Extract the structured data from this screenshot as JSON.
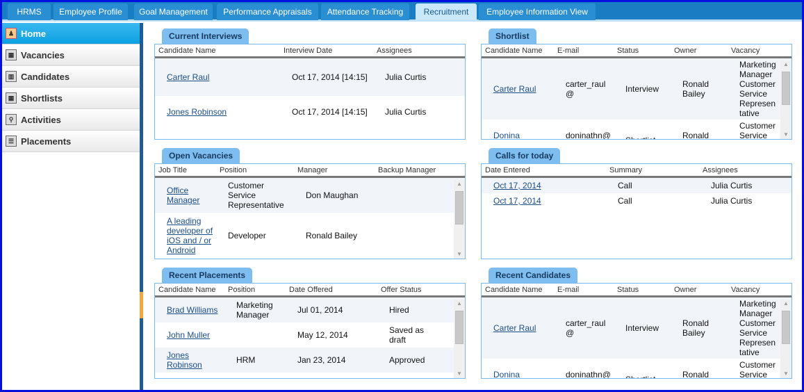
{
  "tabs": [
    "HRMS",
    "Employee Profile",
    "Goal Management",
    "Performance Appraisals",
    "Attendance Tracking",
    "Recruitment",
    "Employee Information View"
  ],
  "active_tab": "Recruitment",
  "sidebar": [
    {
      "label": "Home",
      "icon": "users-icon"
    },
    {
      "label": "Vacancies",
      "icon": "calendar-icon"
    },
    {
      "label": "Candidates",
      "icon": "candidates-icon"
    },
    {
      "label": "Shortlists",
      "icon": "calendar-icon"
    },
    {
      "label": "Activities",
      "icon": "activity-icon"
    },
    {
      "label": "Placements",
      "icon": "list-icon"
    }
  ],
  "panels": {
    "current_interviews": {
      "title": "Current Interviews",
      "headers": [
        "Candidate Name",
        "Interview Date",
        "Assignees"
      ],
      "rows": [
        [
          "Carter Raul",
          "Oct 17, 2014 [14:15]",
          "Julia Curtis"
        ],
        [
          "Jones Robinson",
          "Oct 17, 2014 [14:15]",
          "Julia Curtis"
        ]
      ]
    },
    "shortlist": {
      "title": "Shortlist",
      "headers": [
        "Candidate Name",
        "E-mail",
        "Status",
        "Owner",
        "Vacancy"
      ],
      "rows": [
        [
          "Carter Raul",
          "carter_raul@",
          "Interview",
          "Ronald Bailey",
          "Marketing Manager Customer Service Representative"
        ],
        [
          "Donina Thompson",
          "doninathn@e",
          "Shortlist",
          "Ronald Bailey",
          "Customer Service Representative"
        ]
      ]
    },
    "open_vacancies": {
      "title": "Open Vacancies",
      "headers": [
        "Job Title",
        "Position",
        "Manager",
        "Backup Manager"
      ],
      "rows": [
        [
          "Office Manager",
          "Customer Service Representative",
          "Don Maughan",
          ""
        ],
        [
          "A leading developer of iOS and / or Android",
          "Developer",
          "Ronald Bailey",
          ""
        ]
      ]
    },
    "calls_for_today": {
      "title": "Calls for today",
      "headers": [
        "Date Entered",
        "Summary",
        "Assignees"
      ],
      "rows": [
        [
          "Oct 17, 2014",
          "Call",
          "Julia Curtis"
        ],
        [
          "Oct 17, 2014",
          "Call",
          "Julia Curtis"
        ]
      ]
    },
    "recent_placements": {
      "title": "Recent Placements",
      "headers": [
        "Candidate Name",
        "Position",
        "Date Offered",
        "Offer Status"
      ],
      "rows": [
        [
          "Brad Williams",
          "Marketing Manager",
          "Jul 01, 2014",
          "Hired"
        ],
        [
          "John Muller",
          "",
          "May 12, 2014",
          "Saved as draft"
        ],
        [
          "Jones Robinson",
          "HRM",
          "Jan 23, 2014",
          "Approved"
        ]
      ]
    },
    "recent_candidates": {
      "title": "Recent Candidates",
      "headers": [
        "Candidate Name",
        "E-mail",
        "Status",
        "Owner",
        "Vacancy"
      ],
      "rows": [
        [
          "Carter Raul",
          "carter_raul@",
          "Interview",
          "Ronald Bailey",
          "Marketing Manager Customer Service Representative"
        ],
        [
          "Donina Thompson",
          "doninathn@e",
          "Shortlist",
          "Ronald Bailey",
          "Customer Service Representative"
        ]
      ]
    }
  }
}
